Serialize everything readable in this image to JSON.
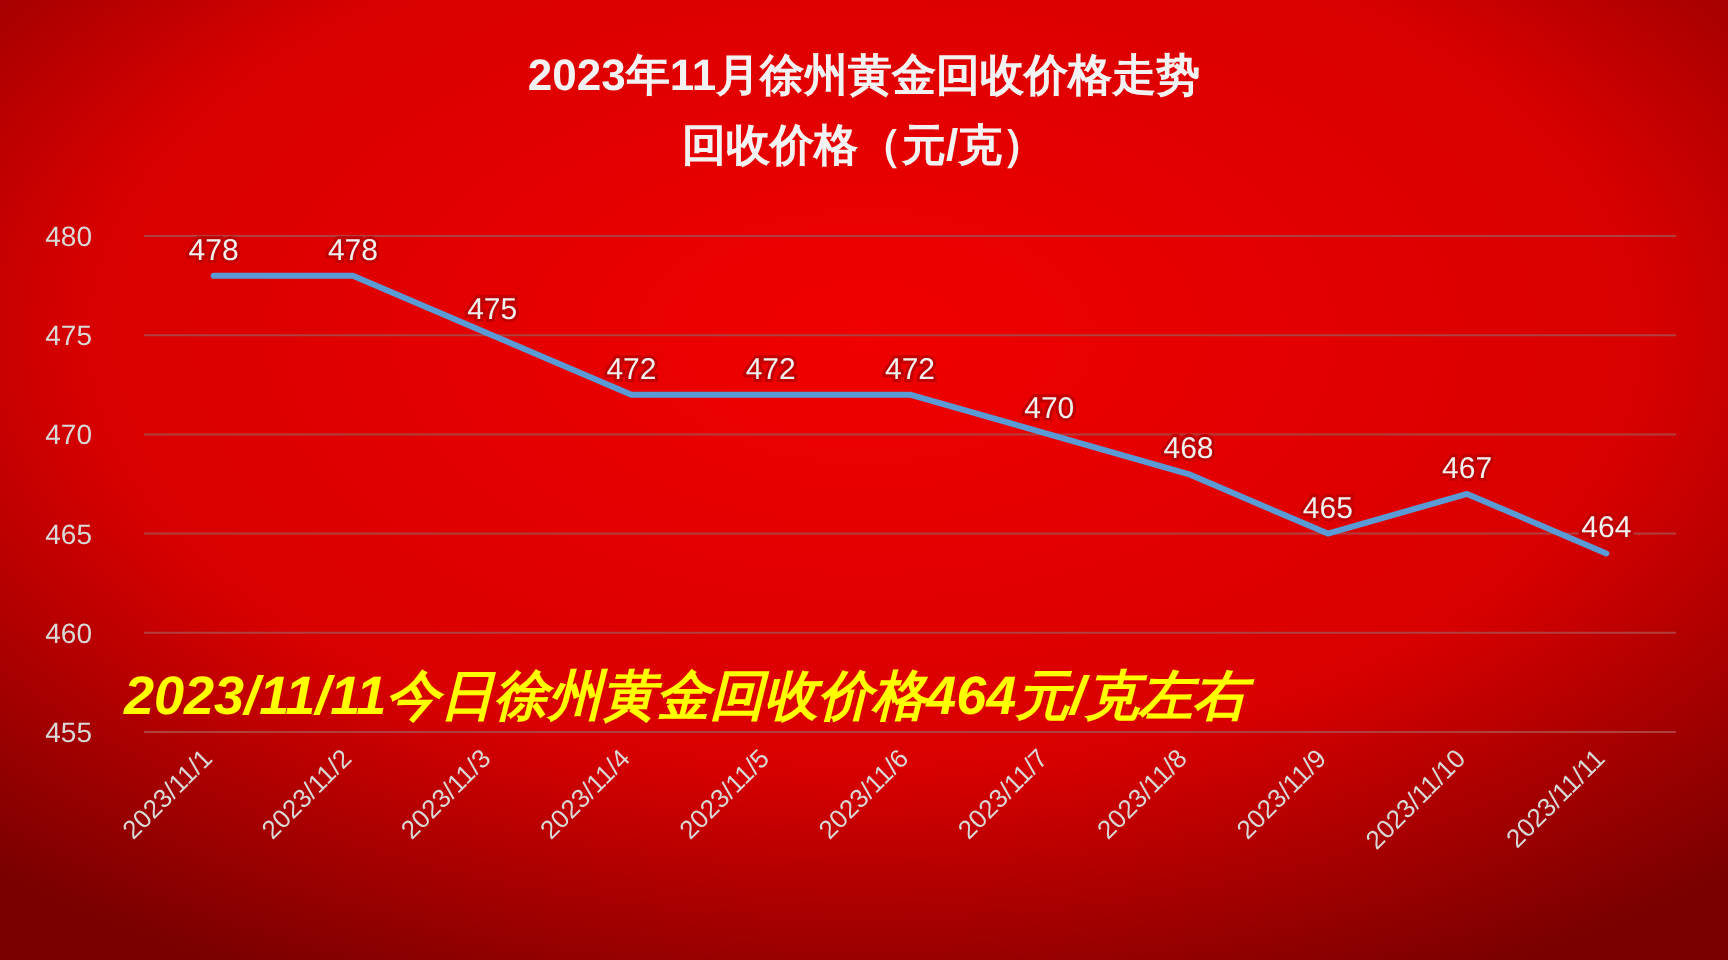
{
  "chart_data": {
    "type": "line",
    "title": "2023年11月徐州黄金回收价格走势",
    "subtitle": "回收价格（元/克）",
    "categories": [
      "2023/11/1",
      "2023/11/2",
      "2023/11/3",
      "2023/11/4",
      "2023/11/5",
      "2023/11/6",
      "2023/11/7",
      "2023/11/8",
      "2023/11/9",
      "2023/11/10",
      "2023/11/11"
    ],
    "series": [
      {
        "color": "#5b9bd5",
        "values": [
          478,
          478,
          475,
          472,
          472,
          472,
          470,
          468,
          465,
          467,
          464
        ]
      }
    ],
    "ylim": [
      455,
      480
    ],
    "yticks": [
      455,
      460,
      465,
      470,
      475,
      480
    ],
    "grid": "y",
    "data_labels": true,
    "marker": "none",
    "line_style": "solid",
    "annotations": [
      "2023/11/11今日徐州黄金回收价格464元/克左右"
    ]
  }
}
